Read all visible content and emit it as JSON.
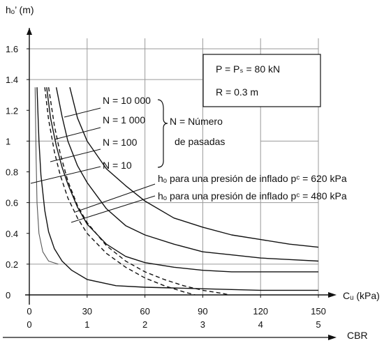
{
  "chart_data": {
    "type": "line",
    "ylabel": "hₒ’ (m)",
    "xlabel": "Cᵤ (kPa)",
    "x2label": "CBR",
    "xlim": [
      0,
      150
    ],
    "ylim": [
      0,
      1.6
    ],
    "xticks": [
      "0",
      "30",
      "60",
      "90",
      "120",
      "150"
    ],
    "xticks_values": [
      0,
      30,
      60,
      90,
      120,
      150
    ],
    "x2ticks": [
      "0",
      "1",
      "2",
      "3",
      "4",
      "5"
    ],
    "yticks": [
      "0",
      "0.2",
      "0.4",
      "0.6",
      "0.8",
      "1",
      "1.2",
      "1.4",
      "1.6"
    ],
    "yticks_values": [
      0,
      0.2,
      0.4,
      0.6,
      0.8,
      1.0,
      1.2,
      1.4,
      1.6
    ],
    "grid": true,
    "box_lines": [
      "P = Pₛ = 80 kN",
      "R = 0.3 m"
    ],
    "legend_passes": [
      "N = 10 000",
      "N = 1 000",
      "N = 100",
      "N = 10"
    ],
    "legend_brace_lines": [
      "N = Número",
      "de pasadas"
    ],
    "pressure_labels": [
      "hₒ para una presión de inflado pᶜ = 620 kPa",
      "hₒ para una presión de inflado pᶜ = 480 kPa"
    ],
    "series": [
      {
        "style": "solid",
        "x": [
          21,
          25,
          30,
          40,
          50,
          60,
          75,
          90,
          105,
          120,
          135,
          150
        ],
        "y": [
          1.35,
          1.15,
          1.0,
          0.82,
          0.71,
          0.61,
          0.5,
          0.44,
          0.39,
          0.36,
          0.33,
          0.31
        ]
      },
      {
        "style": "solid",
        "x": [
          14,
          17,
          20,
          25,
          30,
          40,
          50,
          60,
          75,
          90,
          105,
          120,
          135,
          150
        ],
        "y": [
          1.35,
          1.16,
          1.0,
          0.84,
          0.73,
          0.56,
          0.45,
          0.39,
          0.33,
          0.28,
          0.26,
          0.24,
          0.23,
          0.22
        ]
      },
      {
        "style": "solid",
        "x": [
          9,
          11,
          14,
          17,
          20,
          25,
          30,
          40,
          50,
          60,
          75,
          90,
          105,
          120,
          135,
          150
        ],
        "y": [
          1.35,
          1.15,
          0.97,
          0.83,
          0.72,
          0.57,
          0.46,
          0.33,
          0.25,
          0.21,
          0.18,
          0.16,
          0.15,
          0.15,
          0.15,
          0.15
        ]
      },
      {
        "style": "solid",
        "x": [
          4,
          5,
          6,
          8,
          10,
          13,
          17,
          22,
          30,
          45,
          60,
          90,
          120,
          150
        ],
        "y": [
          1.35,
          1.0,
          0.78,
          0.55,
          0.41,
          0.3,
          0.22,
          0.16,
          0.1,
          0.06,
          0.05,
          0.04,
          0.03,
          0.03
        ]
      },
      {
        "style": "dashed",
        "x": [
          10,
          13,
          16,
          20,
          25,
          30,
          40,
          50,
          60,
          70,
          80,
          90,
          100,
          104
        ],
        "y": [
          1.35,
          1.1,
          0.92,
          0.74,
          0.58,
          0.47,
          0.32,
          0.22,
          0.15,
          0.1,
          0.06,
          0.03,
          0.01,
          0.0
        ]
      },
      {
        "style": "dashed",
        "x": [
          8,
          10,
          13,
          16,
          20,
          25,
          30,
          40,
          50,
          60,
          70,
          80,
          86
        ],
        "y": [
          1.35,
          1.14,
          0.93,
          0.78,
          0.63,
          0.5,
          0.4,
          0.27,
          0.18,
          0.11,
          0.06,
          0.02,
          0.0
        ]
      },
      {
        "style": "solid",
        "x": [
          3,
          3.5,
          4,
          5,
          7,
          10,
          15
        ],
        "y": [
          1.35,
          0.9,
          0.6,
          0.4,
          0.28,
          0.22,
          0.2
        ]
      }
    ]
  }
}
